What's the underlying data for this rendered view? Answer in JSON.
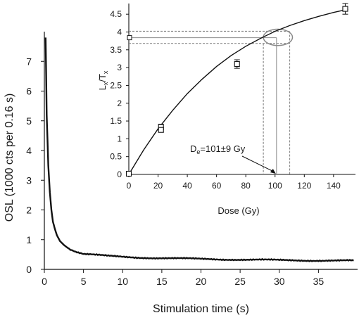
{
  "chart_data": [
    {
      "type": "line",
      "xlabel": "Stimulation time (s)",
      "ylabel": "OSL (1000 cts per 0.16 s)",
      "xlim": [
        0,
        40
      ],
      "ylim": [
        0,
        8
      ],
      "xticks": [
        "0",
        "5",
        "10",
        "15",
        "20",
        "25",
        "30",
        "35"
      ],
      "yticks": [
        "0",
        "1",
        "2",
        "3",
        "4",
        "5",
        "6",
        "7"
      ],
      "grid": false,
      "series": [
        {
          "x": [
            0.16,
            0.3,
            0.5,
            0.7,
            0.9,
            1.1,
            1.3,
            1.6,
            2.0,
            2.5,
            3.0,
            4.0,
            5.0,
            6.0,
            8.0,
            10.0,
            12.0,
            15.0,
            18.0,
            20.0,
            25.0,
            30.0,
            35.0,
            39.5
          ],
          "y": [
            7.8,
            5.2,
            3.5,
            2.6,
            2.0,
            1.6,
            1.4,
            1.15,
            0.95,
            0.82,
            0.72,
            0.6,
            0.52,
            0.5,
            0.45,
            0.42,
            0.4,
            0.38,
            0.36,
            0.35,
            0.33,
            0.31,
            0.3,
            0.29
          ]
        }
      ]
    },
    {
      "type": "scatter",
      "xlabel": "Dose (Gy)",
      "ylabel_main": "L",
      "ylabel_sub1": "x",
      "ylabel_mid": "/T",
      "ylabel_sub2": "x",
      "xlim": [
        0,
        155
      ],
      "ylim": [
        0,
        4.8
      ],
      "xticks": [
        "0",
        "20",
        "40",
        "60",
        "80",
        "100",
        "120",
        "140"
      ],
      "yticks": [
        "0",
        "0.5",
        "1",
        "1.5",
        "2",
        "2.5",
        "3",
        "3.5",
        "4",
        "4.5"
      ],
      "points": [
        {
          "x": 0,
          "y": 0.02,
          "err": 0.02
        },
        {
          "x": 22,
          "y": 1.33,
          "err": 0.08
        },
        {
          "x": 22,
          "y": 1.25,
          "err": 0.06
        },
        {
          "x": 74,
          "y": 3.1,
          "err": 0.12
        },
        {
          "x": 148,
          "y": 4.65,
          "err": 0.15
        }
      ],
      "natural_point": {
        "x": 0,
        "y": 3.84
      },
      "fit": {
        "x": [
          0,
          10,
          20,
          30,
          40,
          50,
          60,
          70,
          80,
          90,
          100,
          110,
          120,
          130,
          140,
          150
        ],
        "y": [
          0,
          0.68,
          1.28,
          1.8,
          2.27,
          2.67,
          3.03,
          3.34,
          3.6,
          3.82,
          4.02,
          4.18,
          4.32,
          4.44,
          4.55,
          4.64
        ]
      },
      "lxtx_band": [
        3.68,
        4.02
      ],
      "dose_band": [
        92,
        110
      ],
      "de_marker": 101,
      "annotation": {
        "main": "D",
        "sub": "e",
        "rest": "=101±9 Gy"
      }
    }
  ]
}
